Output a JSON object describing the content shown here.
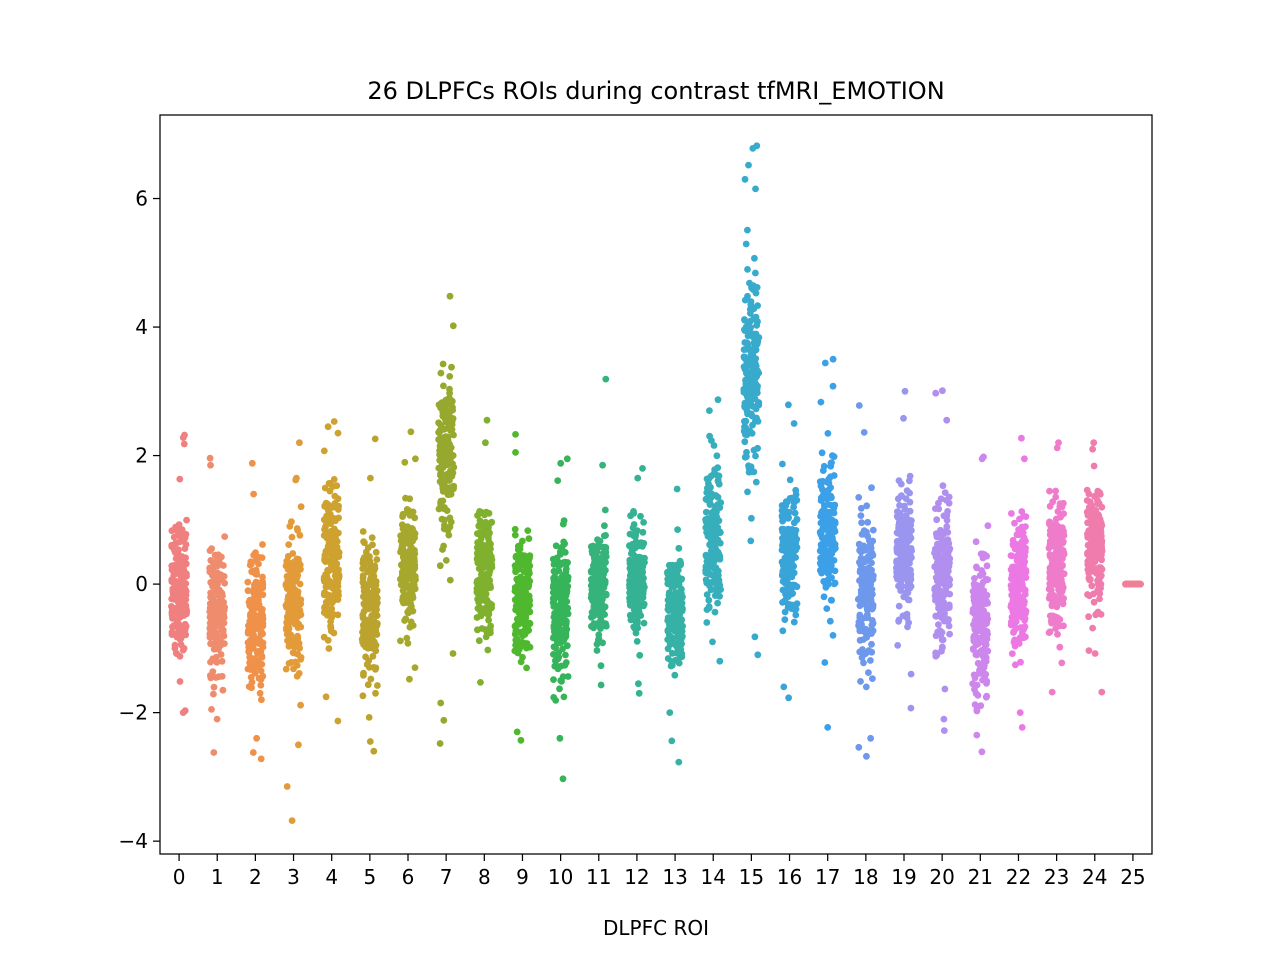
{
  "chart_data": {
    "type": "scatter",
    "subtype": "strip",
    "title": "26 DLPFCs ROIs during contrast tfMRI_EMOTION",
    "xlabel": "DLPFC ROI",
    "ylabel": "",
    "ylim": [
      -4.2,
      7.3
    ],
    "yticks": [
      -4,
      -2,
      0,
      2,
      4,
      6
    ],
    "ytick_labels": [
      "−4",
      "−2",
      "0",
      "2",
      "4",
      "6"
    ],
    "categories": [
      "0",
      "1",
      "2",
      "3",
      "4",
      "5",
      "6",
      "7",
      "8",
      "9",
      "10",
      "11",
      "12",
      "13",
      "14",
      "15",
      "16",
      "17",
      "18",
      "19",
      "20",
      "21",
      "22",
      "23",
      "24",
      "25"
    ],
    "grid": false,
    "legend": "none",
    "points_per_category": 180,
    "series": [
      {
        "category": "0",
        "color": "#f08080",
        "center": 0.0,
        "spread": 0.95,
        "min": -2.0,
        "max": 2.32,
        "outliers": [
          2.32,
          2.28,
          2.18,
          -1.97,
          -2.0
        ]
      },
      {
        "category": "1",
        "color": "#ef8c6e",
        "center": -0.35,
        "spread": 0.85,
        "min": -2.62,
        "max": 1.96,
        "outliers": [
          1.96,
          1.85,
          -2.62,
          -2.1,
          -1.95
        ]
      },
      {
        "category": "2",
        "color": "#f0914a",
        "center": -0.55,
        "spread": 0.8,
        "min": -2.72,
        "max": 1.88,
        "outliers": [
          1.88,
          1.4,
          -2.62,
          -2.72,
          -2.4
        ]
      },
      {
        "category": "3",
        "color": "#e39b3a",
        "center": -0.3,
        "spread": 0.9,
        "min": -3.68,
        "max": 2.2,
        "outliers": [
          2.2,
          1.62,
          -2.5,
          -3.15,
          -3.68
        ]
      },
      {
        "category": "4",
        "color": "#cfa12e",
        "center": 0.4,
        "spread": 0.9,
        "min": -2.13,
        "max": 2.53,
        "outliers": [
          2.53,
          2.45,
          2.35,
          -2.13
        ]
      },
      {
        "category": "5",
        "color": "#bca32e",
        "center": -0.4,
        "spread": 0.9,
        "min": -2.6,
        "max": 2.26,
        "outliers": [
          2.26,
          1.65,
          -2.45,
          -2.6
        ]
      },
      {
        "category": "6",
        "color": "#a6a82e",
        "center": 0.3,
        "spread": 0.75,
        "min": -1.48,
        "max": 2.37,
        "outliers": [
          2.37,
          1.95,
          -1.48,
          -1.3
        ]
      },
      {
        "category": "7",
        "color": "#97a82e",
        "center": 2.0,
        "spread": 1.0,
        "min": -2.48,
        "max": 4.48,
        "outliers": [
          4.48,
          4.02,
          -1.08,
          -1.85,
          -2.12,
          -2.48
        ]
      },
      {
        "category": "8",
        "color": "#7fb02e",
        "center": 0.3,
        "spread": 0.8,
        "min": -1.53,
        "max": 2.55,
        "outliers": [
          2.55,
          2.2,
          -1.53
        ]
      },
      {
        "category": "9",
        "color": "#4fb82e",
        "center": -0.25,
        "spread": 0.75,
        "min": -2.43,
        "max": 2.33,
        "outliers": [
          2.33,
          2.05,
          -2.3,
          -2.43
        ]
      },
      {
        "category": "10",
        "color": "#36b45a",
        "center": -0.4,
        "spread": 0.85,
        "min": -3.03,
        "max": 1.95,
        "outliers": [
          1.95,
          1.88,
          -2.4,
          -3.03
        ]
      },
      {
        "category": "11",
        "color": "#35b37a",
        "center": 0.0,
        "spread": 0.7,
        "min": -1.57,
        "max": 3.19,
        "outliers": [
          3.19,
          1.85,
          -1.57
        ]
      },
      {
        "category": "12",
        "color": "#35b294",
        "center": 0.1,
        "spread": 0.65,
        "min": -1.7,
        "max": 1.8,
        "outliers": [
          1.8,
          1.65,
          -1.7,
          -1.55
        ]
      },
      {
        "category": "13",
        "color": "#36b1a6",
        "center": -0.4,
        "spread": 0.7,
        "min": -2.77,
        "max": 1.48,
        "outliers": [
          1.48,
          -2.0,
          -2.44,
          -2.77
        ]
      },
      {
        "category": "14",
        "color": "#37aebc",
        "center": 0.7,
        "spread": 0.9,
        "min": -1.2,
        "max": 2.87,
        "outliers": [
          2.87,
          2.7,
          -1.2
        ]
      },
      {
        "category": "15",
        "color": "#38aacb",
        "center": 3.3,
        "spread": 1.35,
        "min": -1.1,
        "max": 6.82,
        "outliers": [
          6.82,
          6.78,
          6.52,
          6.3,
          6.15,
          -0.82,
          -1.1
        ]
      },
      {
        "category": "16",
        "color": "#38a4d8",
        "center": 0.5,
        "spread": 0.85,
        "min": -1.77,
        "max": 2.79,
        "outliers": [
          2.79,
          2.5,
          -1.6,
          -1.77
        ]
      },
      {
        "category": "17",
        "color": "#3ba0e8",
        "center": 0.7,
        "spread": 0.95,
        "min": -2.23,
        "max": 3.5,
        "outliers": [
          3.5,
          3.44,
          3.08,
          -1.22,
          -2.23
        ]
      },
      {
        "category": "18",
        "color": "#6e98ec",
        "center": -0.1,
        "spread": 0.9,
        "min": -2.68,
        "max": 2.78,
        "outliers": [
          2.78,
          2.36,
          -2.4,
          -2.54,
          -2.68
        ]
      },
      {
        "category": "19",
        "color": "#9a95ee",
        "center": 0.5,
        "spread": 0.85,
        "min": -1.93,
        "max": 3.0,
        "outliers": [
          3.0,
          2.58,
          -1.93,
          -1.4
        ]
      },
      {
        "category": "20",
        "color": "#b18fee",
        "center": 0.1,
        "spread": 0.9,
        "min": -2.28,
        "max": 3.01,
        "outliers": [
          3.01,
          2.97,
          2.55,
          -2.1,
          -2.28
        ]
      },
      {
        "category": "21",
        "color": "#cc86ec",
        "center": -0.6,
        "spread": 0.85,
        "min": -2.61,
        "max": 1.98,
        "outliers": [
          1.98,
          1.95,
          -2.35,
          -2.61
        ]
      },
      {
        "category": "22",
        "color": "#ec78e4",
        "center": 0.0,
        "spread": 0.85,
        "min": -2.23,
        "max": 2.27,
        "outliers": [
          2.27,
          1.95,
          -2.0,
          -2.23
        ]
      },
      {
        "category": "23",
        "color": "#ef7ccb",
        "center": 0.3,
        "spread": 0.8,
        "min": -1.68,
        "max": 2.2,
        "outliers": [
          2.2,
          2.12,
          -1.68
        ]
      },
      {
        "category": "24",
        "color": "#f07cad",
        "center": 0.6,
        "spread": 0.75,
        "min": -1.68,
        "max": 2.2,
        "outliers": [
          2.2,
          2.1,
          -1.68,
          -1.08
        ]
      },
      {
        "category": "25",
        "color": "#f07f98",
        "center": 0.0,
        "spread": 0.0,
        "min": 0.0,
        "max": 0.0,
        "outliers": []
      }
    ]
  }
}
